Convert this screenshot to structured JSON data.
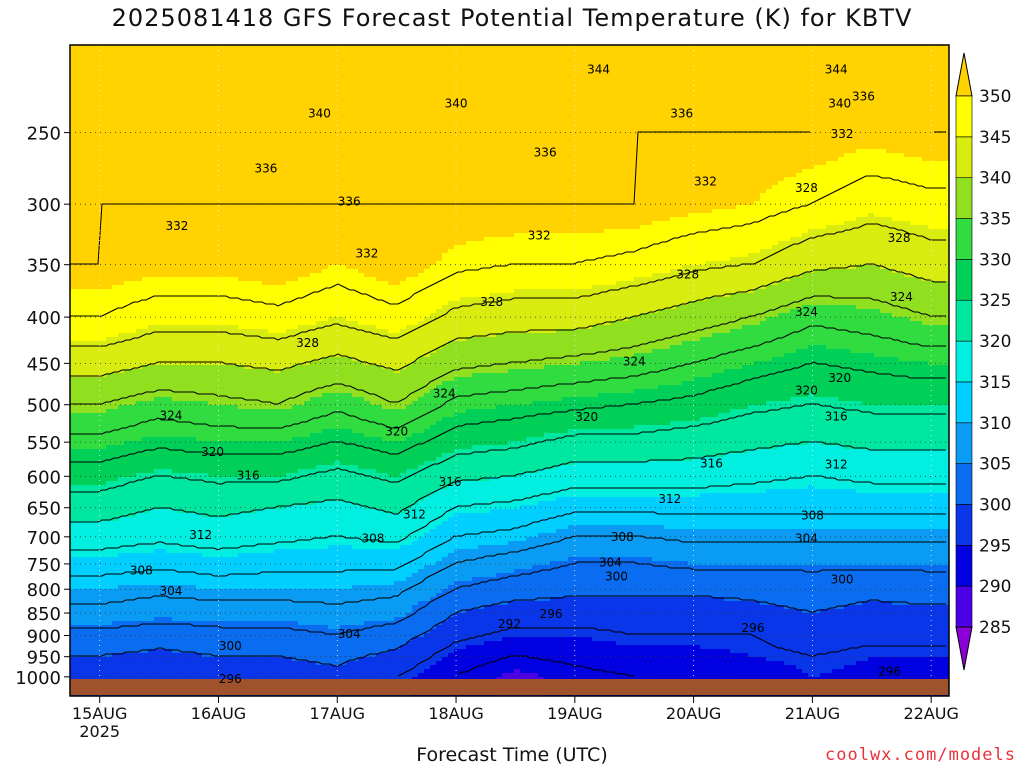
{
  "chart_data": {
    "type": "heatmap",
    "title": "2025081418 GFS Forecast Potential Temperature (K) for KBTV",
    "xlabel": "Forecast Time (UTC)",
    "ylabel": "",
    "x_ticks": [
      {
        "label": "15AUG",
        "sub": "2025",
        "day": 0
      },
      {
        "label": "16AUG",
        "sub": "",
        "day": 1
      },
      {
        "label": "17AUG",
        "sub": "",
        "day": 2
      },
      {
        "label": "18AUG",
        "sub": "",
        "day": 3
      },
      {
        "label": "19AUG",
        "sub": "",
        "day": 4
      },
      {
        "label": "20AUG",
        "sub": "",
        "day": 5
      },
      {
        "label": "21AUG",
        "sub": "",
        "day": 6
      },
      {
        "label": "22AUG",
        "sub": "",
        "day": 7
      }
    ],
    "xlim_days": [
      -0.25,
      7.15
    ],
    "y_ticks": [
      250,
      300,
      350,
      400,
      450,
      500,
      550,
      600,
      650,
      700,
      750,
      800,
      850,
      900,
      950,
      1000
    ],
    "y_axis_scale": "log pressure (hPa), inverted",
    "ylim_hpa": [
      1050,
      200
    ],
    "colorbar": {
      "levels": [
        285,
        290,
        295,
        300,
        305,
        310,
        315,
        320,
        325,
        330,
        335,
        340,
        345,
        350
      ],
      "colors": [
        "#8b00d8",
        "#4b00e8",
        "#0000e0",
        "#0836e8",
        "#0a6cf0",
        "#0a9cf4",
        "#00cfff",
        "#00efe0",
        "#00e8a0",
        "#00d058",
        "#30dc40",
        "#90e020",
        "#d8ec10",
        "#ffff00",
        "#ffd200"
      ]
    },
    "profile_hpa": [
      1000,
      950,
      900,
      850,
      800,
      750,
      700,
      650,
      600,
      550,
      500,
      450,
      400,
      350,
      300,
      250,
      200
    ],
    "days": [
      0,
      0.5,
      1,
      1.5,
      2,
      2.5,
      3,
      3.5,
      4,
      4.5,
      5,
      5.5,
      6,
      6.5,
      7
    ],
    "theta_k": [
      [
        297,
        300,
        303,
        307,
        310,
        314,
        318,
        322,
        326,
        331,
        336,
        342,
        348,
        352,
        352,
        352,
        352
      ],
      [
        296,
        299,
        302,
        306,
        309,
        313,
        317,
        320,
        324,
        329,
        334,
        340,
        346,
        351,
        352,
        352,
        352
      ],
      [
        297,
        300,
        303,
        306,
        310,
        314,
        318,
        321,
        325,
        330,
        335,
        340,
        346,
        351,
        352,
        352,
        352
      ],
      [
        298,
        300,
        303,
        306,
        310,
        313,
        317,
        320,
        325,
        330,
        336,
        341,
        347,
        352,
        352,
        352,
        352
      ],
      [
        299,
        301,
        304,
        307,
        310,
        313,
        316,
        319,
        323,
        328,
        333,
        339,
        345,
        350,
        352,
        352,
        352
      ],
      [
        296,
        299,
        302,
        306,
        309,
        313,
        317,
        321,
        325,
        330,
        336,
        341,
        347,
        352,
        352,
        352,
        352
      ],
      [
        292,
        294,
        297,
        300,
        304,
        308,
        312,
        316,
        321,
        326,
        331,
        337,
        343,
        349,
        352,
        352,
        352
      ],
      [
        289,
        292,
        295,
        298,
        302,
        306,
        311,
        315,
        320,
        325,
        330,
        336,
        342,
        348,
        352,
        352,
        352
      ],
      [
        291,
        293,
        295,
        298,
        301,
        304,
        308,
        313,
        318,
        323,
        329,
        335,
        342,
        348,
        352,
        352,
        352
      ],
      [
        292,
        294,
        296,
        298,
        301,
        304,
        308,
        313,
        318,
        323,
        328,
        334,
        340,
        347,
        352,
        352,
        352
      ],
      [
        292,
        294,
        296,
        298,
        301,
        305,
        309,
        313,
        318,
        322,
        327,
        332,
        338,
        345,
        351,
        352,
        352
      ],
      [
        293,
        295,
        296,
        299,
        301,
        305,
        309,
        313,
        317,
        321,
        325,
        330,
        336,
        344,
        350,
        352,
        352
      ],
      [
        295,
        296,
        298,
        300,
        302,
        305,
        309,
        313,
        316,
        320,
        324,
        328,
        333,
        341,
        348,
        352,
        352
      ],
      [
        294,
        295,
        297,
        299,
        301,
        305,
        309,
        313,
        317,
        321,
        325,
        329,
        334,
        340,
        346,
        351,
        352
      ],
      [
        293,
        295,
        297,
        299,
        302,
        305,
        309,
        313,
        317,
        321,
        325,
        330,
        336,
        342,
        347,
        352,
        352
      ]
    ],
    "contour_interval_k": 4,
    "contour_labels": [
      {
        "t": "344",
        "day": 4.2,
        "p": 213
      },
      {
        "t": "344",
        "day": 6.2,
        "p": 213
      },
      {
        "t": "340",
        "day": 1.85,
        "p": 238
      },
      {
        "t": "340",
        "day": 3.0,
        "p": 232
      },
      {
        "t": "340",
        "day": 6.23,
        "p": 232
      },
      {
        "t": "336",
        "day": 6.43,
        "p": 228
      },
      {
        "t": "336",
        "day": 4.9,
        "p": 238
      },
      {
        "t": "336",
        "day": 3.75,
        "p": 263
      },
      {
        "t": "336",
        "day": 1.4,
        "p": 274
      },
      {
        "t": "336",
        "day": 2.1,
        "p": 298
      },
      {
        "t": "332",
        "day": 6.25,
        "p": 251
      },
      {
        "t": "332",
        "day": 5.1,
        "p": 283
      },
      {
        "t": "332",
        "day": 0.65,
        "p": 317
      },
      {
        "t": "332",
        "day": 3.7,
        "p": 325
      },
      {
        "t": "332",
        "day": 2.25,
        "p": 340
      },
      {
        "t": "328",
        "day": 5.95,
        "p": 288
      },
      {
        "t": "328",
        "day": 6.73,
        "p": 327
      },
      {
        "t": "328",
        "day": 4.95,
        "p": 359
      },
      {
        "t": "328",
        "day": 3.3,
        "p": 385
      },
      {
        "t": "328",
        "day": 1.75,
        "p": 427
      },
      {
        "t": "324",
        "day": 5.95,
        "p": 395
      },
      {
        "t": "324",
        "day": 6.75,
        "p": 380
      },
      {
        "t": "324",
        "day": 4.5,
        "p": 448
      },
      {
        "t": "324",
        "day": 2.9,
        "p": 486
      },
      {
        "t": "324",
        "day": 0.6,
        "p": 514
      },
      {
        "t": "320",
        "day": 6.23,
        "p": 467
      },
      {
        "t": "320",
        "day": 5.95,
        "p": 482
      },
      {
        "t": "320",
        "day": 4.1,
        "p": 516
      },
      {
        "t": "320",
        "day": 2.5,
        "p": 535
      },
      {
        "t": "320",
        "day": 0.95,
        "p": 564
      },
      {
        "t": "316",
        "day": 6.2,
        "p": 515
      },
      {
        "t": "316",
        "day": 5.15,
        "p": 581
      },
      {
        "t": "316",
        "day": 2.95,
        "p": 609
      },
      {
        "t": "316",
        "day": 1.25,
        "p": 599
      },
      {
        "t": "312",
        "day": 6.2,
        "p": 582
      },
      {
        "t": "312",
        "day": 4.8,
        "p": 636
      },
      {
        "t": "312",
        "day": 2.65,
        "p": 661
      },
      {
        "t": "312",
        "day": 0.85,
        "p": 697
      },
      {
        "t": "308",
        "day": 6.0,
        "p": 663
      },
      {
        "t": "308",
        "day": 4.4,
        "p": 700
      },
      {
        "t": "308",
        "day": 2.3,
        "p": 703
      },
      {
        "t": "308",
        "day": 0.35,
        "p": 763
      },
      {
        "t": "304",
        "day": 5.95,
        "p": 703
      },
      {
        "t": "304",
        "day": 4.3,
        "p": 747
      },
      {
        "t": "304",
        "day": 0.6,
        "p": 804
      },
      {
        "t": "304",
        "day": 2.1,
        "p": 897
      },
      {
        "t": "300",
        "day": 6.25,
        "p": 780
      },
      {
        "t": "300",
        "day": 4.35,
        "p": 774
      },
      {
        "t": "300",
        "day": 1.1,
        "p": 924
      },
      {
        "t": "296",
        "day": 5.5,
        "p": 883
      },
      {
        "t": "296",
        "day": 3.8,
        "p": 852
      },
      {
        "t": "296",
        "day": 6.65,
        "p": 986
      },
      {
        "t": "296",
        "day": 1.1,
        "p": 1006
      },
      {
        "t": "292",
        "day": 3.45,
        "p": 874
      }
    ],
    "ground_color": "#a0522d",
    "grid": true
  },
  "watermark": "coolwx.com/models"
}
